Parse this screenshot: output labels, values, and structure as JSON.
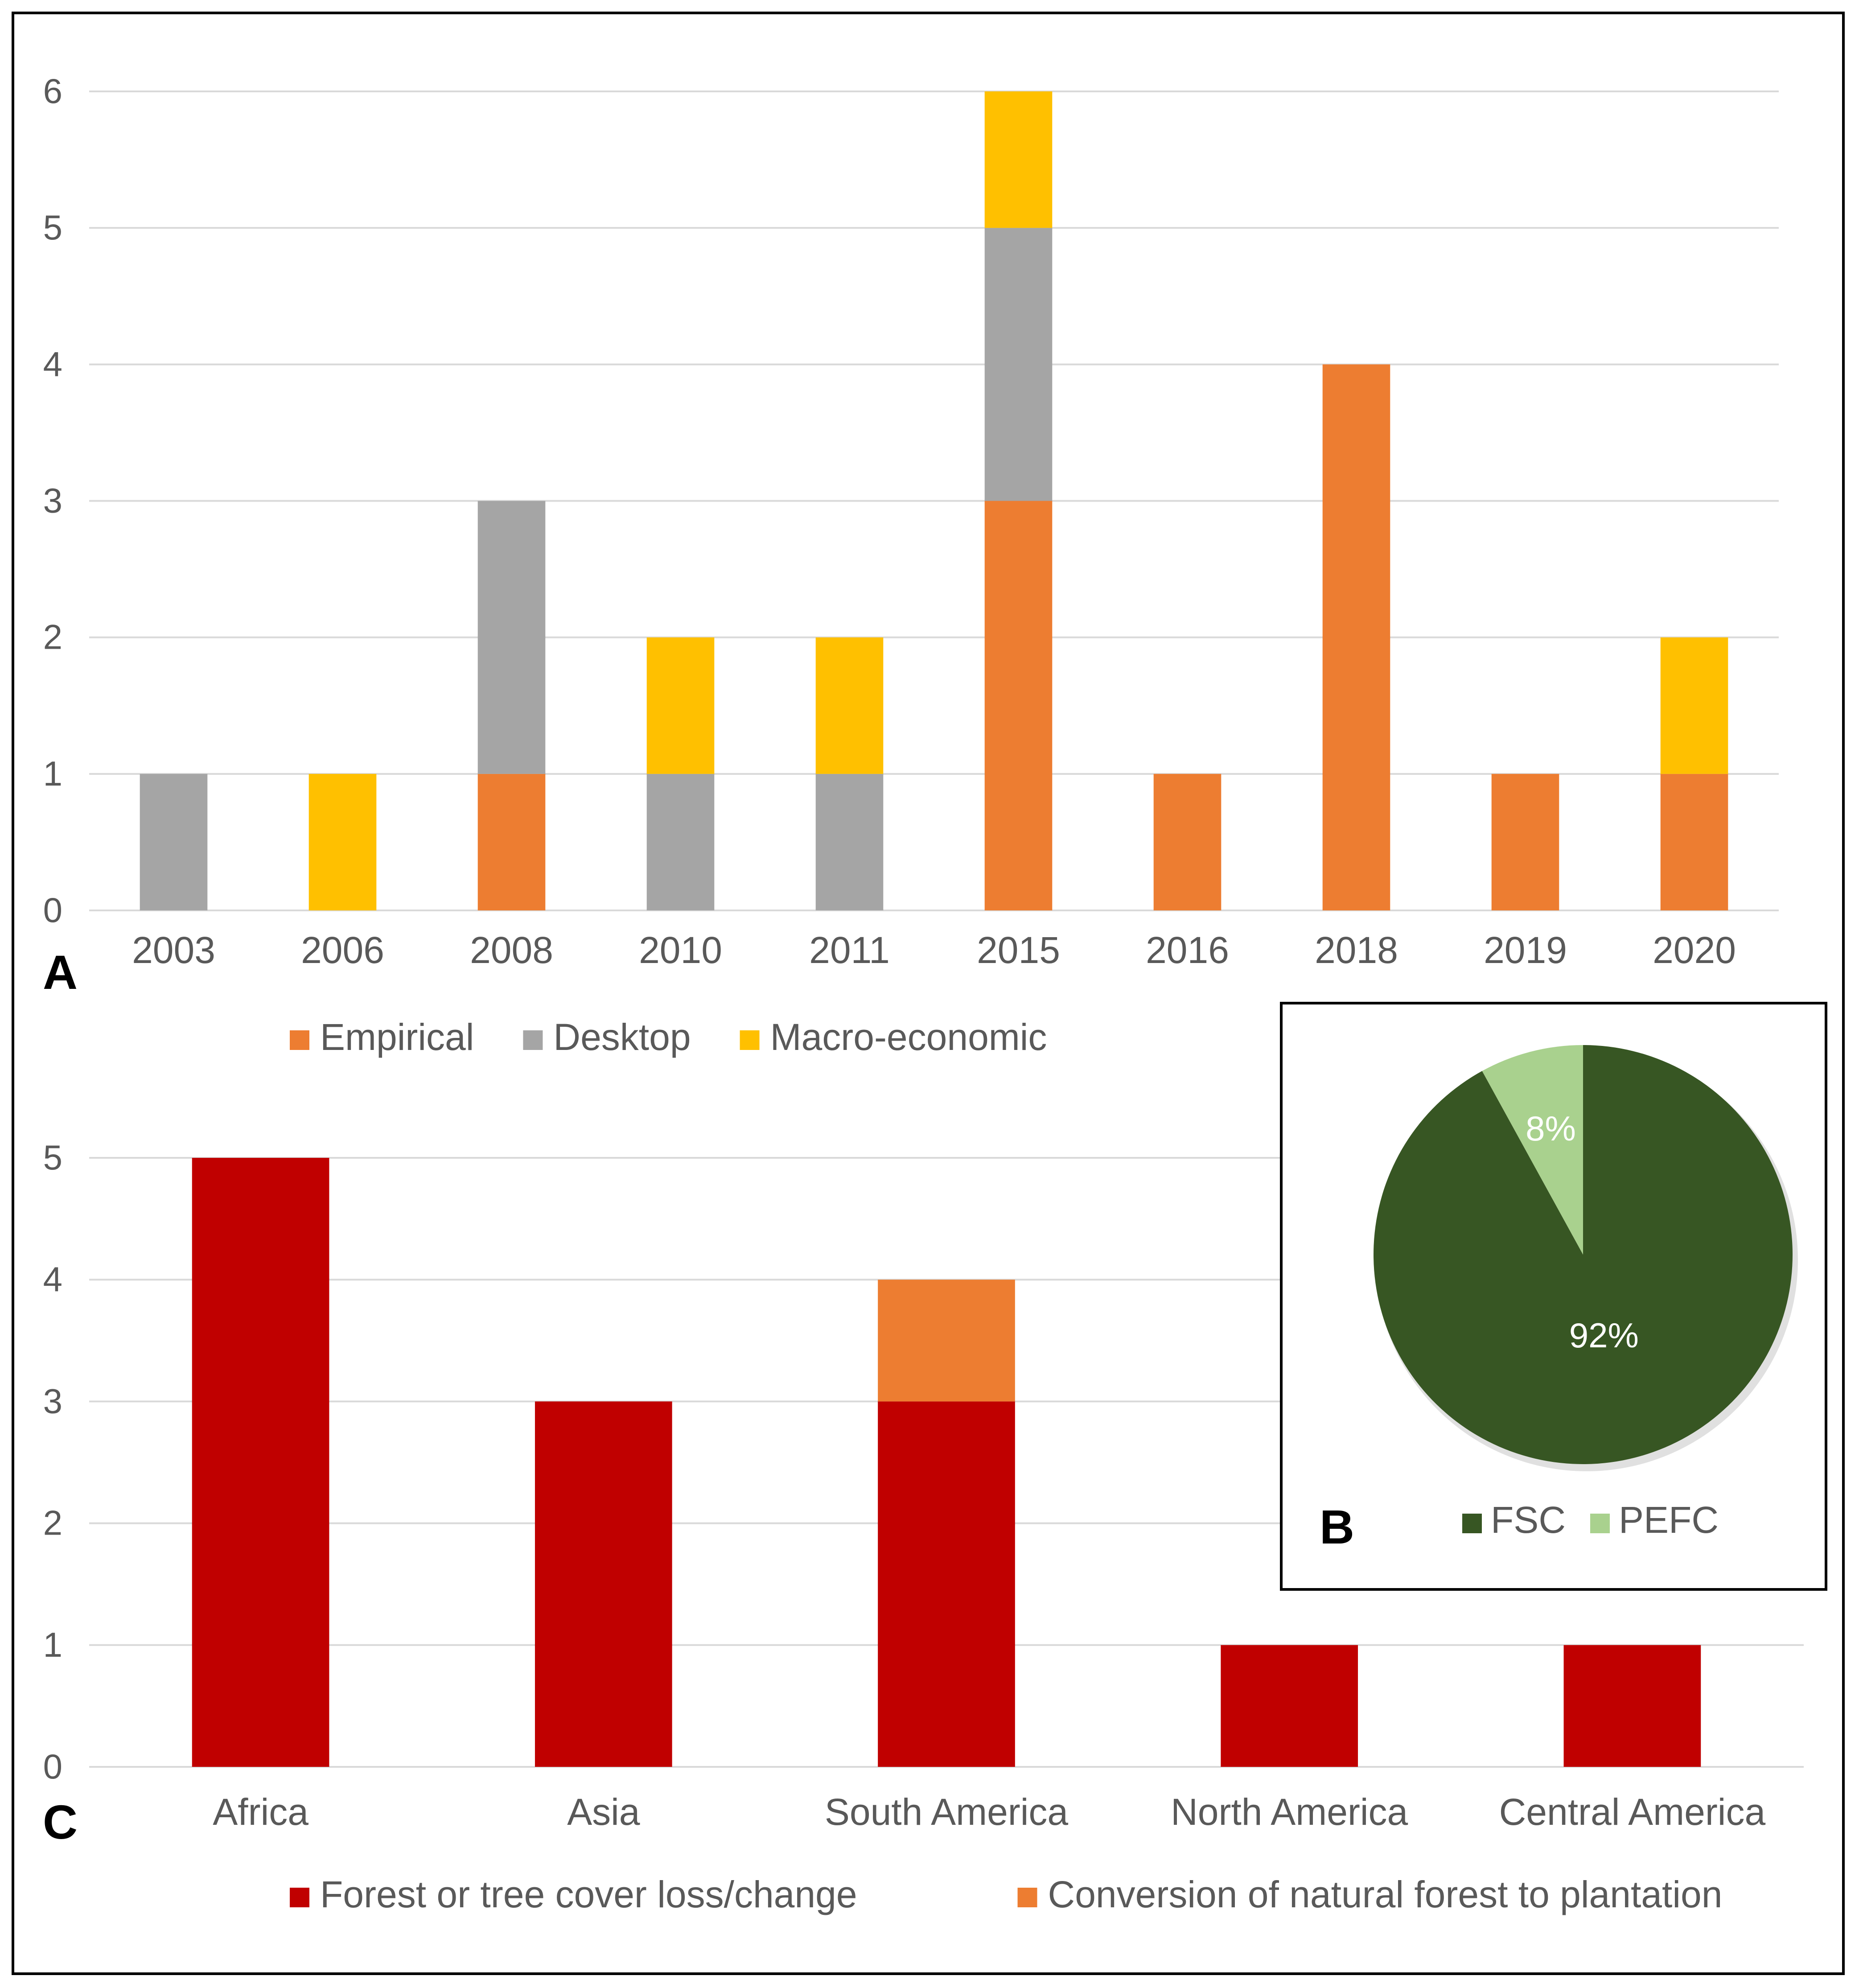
{
  "panels": {
    "a": "A",
    "b": "B",
    "c": "C"
  },
  "chart_data": [
    {
      "id": "A",
      "type": "bar",
      "stacked": true,
      "categories": [
        "2003",
        "2006",
        "2008",
        "2010",
        "2011",
        "2015",
        "2016",
        "2018",
        "2019",
        "2020"
      ],
      "series": [
        {
          "name": "Empirical",
          "color": "#ed7d31",
          "values": [
            0,
            0,
            1,
            0,
            0,
            3,
            1,
            4,
            1,
            1
          ]
        },
        {
          "name": "Desktop",
          "color": "#a5a5a5",
          "values": [
            1,
            0,
            2,
            1,
            1,
            2,
            0,
            0,
            0,
            0
          ]
        },
        {
          "name": "Macro-economic",
          "color": "#ffc000",
          "values": [
            0,
            1,
            0,
            1,
            1,
            1,
            0,
            0,
            0,
            1
          ]
        }
      ],
      "ylim": [
        0,
        6
      ],
      "yticks": [
        "0",
        "1",
        "2",
        "3",
        "4",
        "5",
        "6"
      ],
      "grid": true,
      "legend": "bottom",
      "title": "",
      "xlabel": "",
      "ylabel": ""
    },
    {
      "id": "B",
      "type": "pie",
      "slices": [
        {
          "name": "FSC",
          "value": 92,
          "label": "92%",
          "color": "#375623"
        },
        {
          "name": "PEFC",
          "value": 8,
          "label": "8%",
          "color": "#a9d18e"
        }
      ],
      "legend": "bottom"
    },
    {
      "id": "C",
      "type": "bar",
      "stacked": true,
      "categories": [
        "Africa",
        "Asia",
        "South America",
        "North America",
        "Central America"
      ],
      "series": [
        {
          "name": "Forest or tree cover loss/change",
          "color": "#c00000",
          "values": [
            5,
            3,
            3,
            1,
            1
          ]
        },
        {
          "name": "Conversion of natural forest to plantation",
          "color": "#ed7d31",
          "values": [
            0,
            0,
            1,
            0,
            0
          ]
        }
      ],
      "ylim": [
        0,
        5
      ],
      "yticks": [
        "0",
        "1",
        "2",
        "3",
        "4",
        "5"
      ],
      "grid": true,
      "legend": "bottom",
      "title": "",
      "xlabel": "",
      "ylabel": ""
    }
  ]
}
